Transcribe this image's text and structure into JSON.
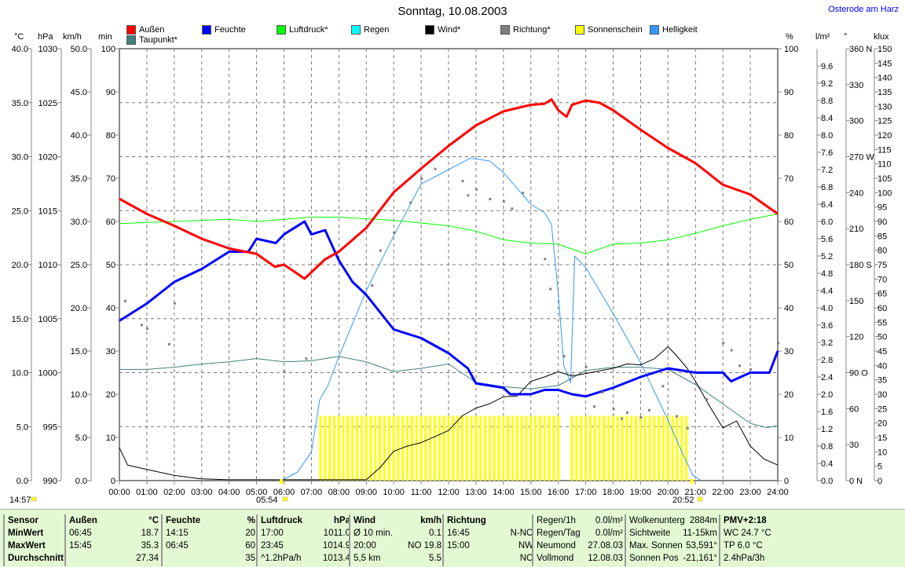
{
  "title": "Sonntag, 10.08.2003",
  "station": "Osterode am Harz",
  "unit_labels": {
    "temp": "°C",
    "press": "hPa",
    "wind": "km/h",
    "min": "min",
    "pct": "%",
    "rain": "l/m²",
    "deg": "°",
    "klux": "klux"
  },
  "sun": {
    "day_length": "14:57",
    "sunrise": "05:54",
    "sunset": "20:52"
  },
  "legend": [
    {
      "label": "Außen",
      "color": "#ff0000"
    },
    {
      "label": "Feuchte",
      "color": "#0000ff"
    },
    {
      "label": "Luftdruck*",
      "color": "#00ff00"
    },
    {
      "label": "Regen",
      "color": "#00ffff"
    },
    {
      "label": "Wind*",
      "color": "#000000"
    },
    {
      "label": "Richtung*",
      "color": "#808080"
    },
    {
      "label": "Sonnenschein",
      "color": "#ffff00"
    },
    {
      "label": "Helligkeit",
      "color": "#3399ff"
    },
    {
      "label": "Taupunkt*",
      "color": "#408080"
    }
  ],
  "chart_data": {
    "type": "line",
    "title": "Sonntag, 10.08.2003",
    "x_ticks": [
      "00:00",
      "01:00",
      "02:00",
      "03:00",
      "04:00",
      "05:00",
      "06:00",
      "07:00",
      "08:00",
      "09:00",
      "10:00",
      "11:00",
      "12:00",
      "13:00",
      "14:00",
      "15:00",
      "16:00",
      "17:00",
      "18:00",
      "19:00",
      "20:00",
      "21:00",
      "22:00",
      "23:00",
      "24:00"
    ],
    "axes": {
      "temp": [
        0,
        40,
        5
      ],
      "press": [
        990,
        1030,
        5
      ],
      "wind": [
        0,
        50,
        5
      ],
      "min": [
        0,
        100,
        10
      ],
      "pct": [
        0,
        100,
        10
      ],
      "rain": [
        0,
        10,
        0.4
      ],
      "deg": [
        0,
        360,
        30
      ],
      "klux": [
        0,
        150,
        5
      ]
    },
    "series": [
      {
        "name": "Außen",
        "axis": "temp",
        "color": "#ff0000",
        "width": 3,
        "x": [
          0,
          1,
          2,
          3,
          4,
          5,
          5.67,
          6,
          6.75,
          7,
          7.5,
          8,
          9,
          10,
          11,
          12,
          13,
          14,
          15,
          15.5,
          15.75,
          16,
          16.3,
          16.5,
          17,
          17.5,
          18,
          19,
          20,
          21,
          22,
          23,
          24
        ],
        "y": [
          26.1,
          24.7,
          23.6,
          22.4,
          21.5,
          21.0,
          19.8,
          20.0,
          18.7,
          19.3,
          20.5,
          21.2,
          23.4,
          26.7,
          28.9,
          31.0,
          32.9,
          34.2,
          34.8,
          34.9,
          35.3,
          34.3,
          33.7,
          34.8,
          35.2,
          35.0,
          34.3,
          32.5,
          30.8,
          29.4,
          27.4,
          26.5,
          24.7
        ]
      },
      {
        "name": "Feuchte",
        "axis": "pct",
        "color": "#0000ff",
        "width": 3,
        "x": [
          0,
          1,
          2,
          3,
          4,
          4.7,
          5,
          5.7,
          6,
          6.75,
          7,
          7.5,
          8,
          8.5,
          9,
          9.5,
          10,
          11,
          12,
          12.7,
          13,
          14,
          14.25,
          15,
          15.5,
          16,
          16.5,
          17,
          17.5,
          18,
          19,
          20,
          21,
          22,
          22.3,
          23,
          23.7,
          24
        ],
        "y": [
          37,
          41,
          46,
          49,
          53,
          53,
          56,
          55,
          57,
          60,
          57,
          58,
          51,
          46,
          43,
          39,
          35,
          33,
          29.5,
          26,
          22.5,
          21.5,
          20,
          20,
          21,
          21,
          20,
          19.5,
          20.5,
          21.5,
          24,
          26,
          25,
          25,
          23,
          25,
          25,
          30
        ]
      },
      {
        "name": "Luftdruck*",
        "axis": "press",
        "color": "#00ff00",
        "width": 1,
        "x": [
          0,
          2,
          4,
          5,
          6,
          7,
          8,
          10,
          12,
          13,
          14,
          15,
          16,
          17,
          18,
          19,
          20,
          21,
          22,
          23,
          24
        ],
        "y": [
          1013.8,
          1014.0,
          1014.2,
          1014.0,
          1014.2,
          1014.4,
          1014.4,
          1014.1,
          1013.6,
          1013.1,
          1012.3,
          1012.0,
          1011.9,
          1011.0,
          1011.9,
          1012.0,
          1012.3,
          1012.9,
          1013.6,
          1014.2,
          1014.7
        ]
      },
      {
        "name": "Taupunkt*",
        "axis": "temp",
        "color": "#408080",
        "width": 1,
        "x": [
          0,
          1,
          2,
          3,
          4,
          5,
          6,
          7,
          8,
          9,
          10,
          11,
          12,
          13,
          14,
          15,
          16,
          17,
          18,
          19,
          20,
          21,
          22,
          23,
          23.6,
          24
        ],
        "y": [
          10.3,
          10.3,
          10.5,
          10.8,
          11.0,
          11.3,
          11.0,
          11.1,
          11.5,
          11.0,
          10.1,
          10.4,
          10.8,
          9.1,
          8.7,
          8.5,
          8.8,
          10.2,
          10.5,
          10.5,
          10.3,
          8.9,
          7.1,
          5.3,
          4.9,
          5.1
        ]
      },
      {
        "name": "Wind*",
        "axis": "wind",
        "color": "#000000",
        "width": 1,
        "x": [
          0,
          0.3,
          1,
          2,
          3,
          4,
          5,
          6,
          7,
          8,
          9,
          9.5,
          10,
          10.5,
          11,
          11.5,
          12,
          12.5,
          13,
          13.5,
          14,
          14.5,
          15,
          15.5,
          16,
          16.5,
          17,
          17.5,
          18,
          18.5,
          19,
          19.5,
          20,
          20.3,
          20.7,
          21,
          21.5,
          22,
          22.5,
          23,
          23.5,
          24
        ],
        "y": [
          3.8,
          1.8,
          1.3,
          0.6,
          0.2,
          0.1,
          0.1,
          0.1,
          0.1,
          0.1,
          0.1,
          1.5,
          3.4,
          4,
          4.4,
          5.1,
          5.8,
          7.5,
          8.4,
          8.9,
          9.7,
          9.8,
          11.5,
          12.0,
          12.6,
          12.1,
          12.4,
          12.7,
          13.0,
          13.5,
          13.4,
          14.1,
          15.5,
          14.5,
          13.0,
          11.5,
          8.7,
          6.1,
          6.9,
          4.0,
          2.5,
          1.8
        ]
      },
      {
        "name": "Helligkeit",
        "axis": "klux",
        "color": "#3399ff",
        "width": 1,
        "x": [
          5.9,
          6.5,
          7,
          7.3,
          7.6,
          8,
          9,
          10,
          11,
          12,
          12.8,
          13.5,
          14,
          15,
          15.5,
          15.75,
          16,
          16.2,
          16.45,
          16.6,
          17,
          18,
          19,
          20,
          20.5,
          20.9,
          21.2
        ],
        "y": [
          0,
          3,
          10,
          28,
          33,
          43,
          66,
          85,
          103,
          108,
          112,
          111,
          107,
          96,
          93,
          89,
          65,
          40,
          34,
          78,
          74,
          58,
          41,
          21,
          10,
          2,
          0
        ]
      }
    ],
    "sunshine": {
      "start": 7.33,
      "end": 20.83,
      "step": 0.1667,
      "value": 15,
      "gaps": [
        [
          16.0,
          16.4
        ]
      ]
    },
    "direction_deg": {
      "x": [
        0.2,
        0.8,
        1,
        1.8,
        2,
        6,
        6.8,
        9.2,
        9.5,
        10,
        10.6,
        11,
        11.5,
        12.5,
        12.7,
        13,
        13.5,
        14,
        14.3,
        14.7,
        15.5,
        15.7,
        16.2,
        16.5,
        17,
        17.3,
        17.6,
        18,
        18.3,
        18.5,
        19,
        19.3,
        19.8,
        20.3,
        20.7,
        21.4,
        22,
        22.3,
        22.6,
        23,
        24
      ],
      "y": [
        150,
        130,
        127,
        114,
        148,
        91,
        102,
        163,
        192,
        207,
        232,
        252,
        260,
        250,
        238,
        243,
        235,
        233,
        227,
        240,
        185,
        160,
        104,
        88,
        95,
        62,
        74,
        60,
        52,
        57,
        53,
        59,
        79,
        54,
        44,
        68,
        115,
        109,
        96,
        93,
        115
      ]
    }
  },
  "stats": {
    "sensor": {
      "head": "Sensor",
      "rows": [
        "MinWert",
        "MaxWert",
        "Durchschnitt"
      ]
    },
    "aussen": {
      "head": "Außen",
      "unit": "°C",
      "rows": [
        [
          "06:45",
          "18.7"
        ],
        [
          "15:45",
          "35.3"
        ],
        [
          "",
          "27.34"
        ]
      ]
    },
    "feuchte": {
      "head": "Feuchte",
      "unit": "%",
      "rows": [
        [
          "14:15",
          "20"
        ],
        [
          "06:45",
          "60"
        ],
        [
          "",
          "35"
        ]
      ]
    },
    "luftdruck": {
      "head": "Luftdruck",
      "unit": "hPa",
      "rows": [
        [
          "17:00",
          "1011.0"
        ],
        [
          "23:45",
          "1014.9"
        ],
        [
          "^1.2hPa/h",
          "1013.4"
        ]
      ]
    },
    "wind": {
      "head": "Wind",
      "unit": "km/h",
      "rows": [
        [
          "Ø 10 min.",
          "0.1"
        ],
        [
          "20:00",
          "NO 19.8"
        ],
        [
          "5,5 km",
          "5.5"
        ]
      ]
    },
    "richtung": {
      "head": "Richtung",
      "unit": "",
      "rows": [
        [
          "16:45",
          "N-NO"
        ],
        [
          "15:00",
          "NW"
        ],
        [
          "",
          "NO"
        ]
      ]
    },
    "misc1": [
      [
        "Regen/1h",
        "0.0l/m²"
      ],
      [
        "Regen/Tag",
        "0.0l/m²"
      ],
      [
        "Neumond",
        "27.08.03"
      ],
      [
        "Vollmond",
        "12.08.03"
      ]
    ],
    "misc2": [
      [
        "Wolkenunterg",
        "2884m"
      ],
      [
        "Sichtweite",
        "11-15km"
      ],
      [
        "Max. Sonnen",
        "53,591°"
      ],
      [
        "Sonnen Pos",
        "-21,161°"
      ]
    ],
    "misc3": [
      "PMV+2:18",
      "WC 24.7 °C",
      "TP 6.0 °C",
      "2.4hPa/3h"
    ]
  }
}
